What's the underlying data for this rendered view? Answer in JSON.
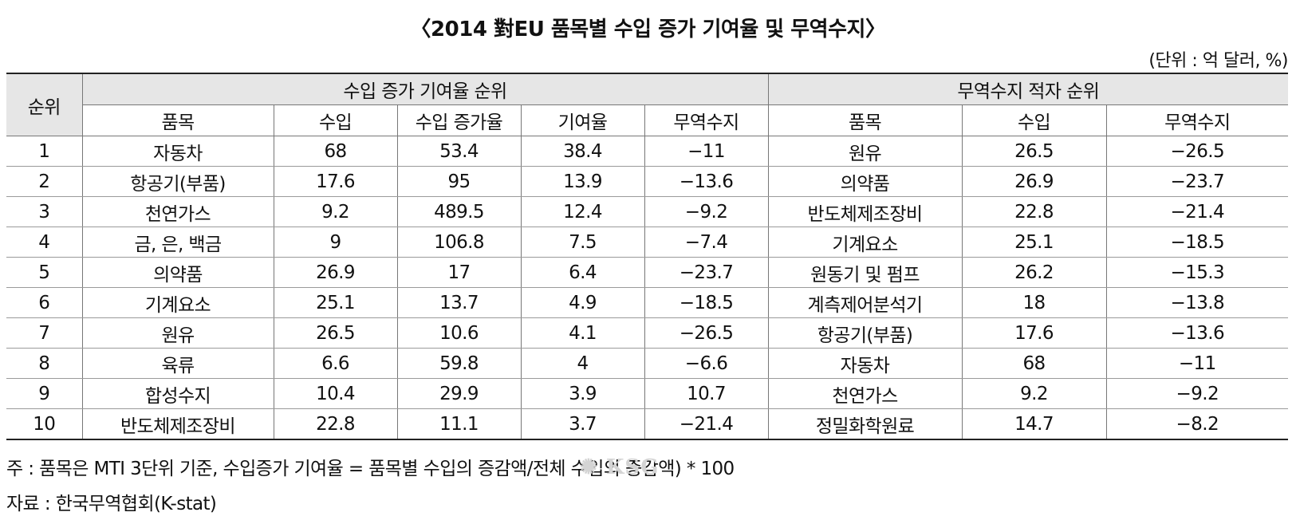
{
  "title": "〈2014 對EU 품목별 수입 증가 기여율 및 무역수지〉",
  "unit": "(단위 : 억 달러, %)",
  "table": {
    "rank_header": "순위",
    "left_group": "수입 증가 기여율 순위",
    "right_group": "무역수지 적자 순위",
    "left_columns": [
      "품목",
      "수입",
      "수입 증가율",
      "기여율",
      "무역수지"
    ],
    "right_columns": [
      "품목",
      "수입",
      "무역수지"
    ],
    "rows": [
      {
        "rank": "1",
        "l_item": "자동차",
        "l_import": "68",
        "l_growth": "53.4",
        "l_contrib": "38.4",
        "l_balance": "−11",
        "r_item": "원유",
        "r_import": "26.5",
        "r_balance": "−26.5"
      },
      {
        "rank": "2",
        "l_item": "항공기(부품)",
        "l_import": "17.6",
        "l_growth": "95",
        "l_contrib": "13.9",
        "l_balance": "−13.6",
        "r_item": "의약품",
        "r_import": "26.9",
        "r_balance": "−23.7"
      },
      {
        "rank": "3",
        "l_item": "천연가스",
        "l_import": "9.2",
        "l_growth": "489.5",
        "l_contrib": "12.4",
        "l_balance": "−9.2",
        "r_item": "반도체제조장비",
        "r_import": "22.8",
        "r_balance": "−21.4"
      },
      {
        "rank": "4",
        "l_item": "금, 은, 백금",
        "l_import": "9",
        "l_growth": "106.8",
        "l_contrib": "7.5",
        "l_balance": "−7.4",
        "r_item": "기계요소",
        "r_import": "25.1",
        "r_balance": "−18.5"
      },
      {
        "rank": "5",
        "l_item": "의약품",
        "l_import": "26.9",
        "l_growth": "17",
        "l_contrib": "6.4",
        "l_balance": "−23.7",
        "r_item": "원동기 및 펌프",
        "r_import": "26.2",
        "r_balance": "−15.3"
      },
      {
        "rank": "6",
        "l_item": "기계요소",
        "l_import": "25.1",
        "l_growth": "13.7",
        "l_contrib": "4.9",
        "l_balance": "−18.5",
        "r_item": "계측제어분석기",
        "r_import": "18",
        "r_balance": "−13.8"
      },
      {
        "rank": "7",
        "l_item": "원유",
        "l_import": "26.5",
        "l_growth": "10.6",
        "l_contrib": "4.1",
        "l_balance": "−26.5",
        "r_item": "항공기(부품)",
        "r_import": "17.6",
        "r_balance": "−13.6"
      },
      {
        "rank": "8",
        "l_item": "육류",
        "l_import": "6.6",
        "l_growth": "59.8",
        "l_contrib": "4",
        "l_balance": "−6.6",
        "r_item": "자동차",
        "r_import": "68",
        "r_balance": "−11"
      },
      {
        "rank": "9",
        "l_item": "합성수지",
        "l_import": "10.4",
        "l_growth": "29.9",
        "l_contrib": "3.9",
        "l_balance": "10.7",
        "r_item": "천연가스",
        "r_import": "9.2",
        "r_balance": "−9.2"
      },
      {
        "rank": "10",
        "l_item": "반도체제조장비",
        "l_import": "22.8",
        "l_growth": "11.1",
        "l_contrib": "3.7",
        "l_balance": "−21.4",
        "r_item": "정밀화학원료",
        "r_import": "14.7",
        "r_balance": "−8.2"
      }
    ]
  },
  "footnote": "주 : 품목은 MTI 3단위 기준, 수입증가 기여율 = 품목별 수입의 증감액/전체 수입의 증감액) * 100",
  "source": "자료 : 한국무역협회(K-stat)",
  "watermark": "KSG"
}
